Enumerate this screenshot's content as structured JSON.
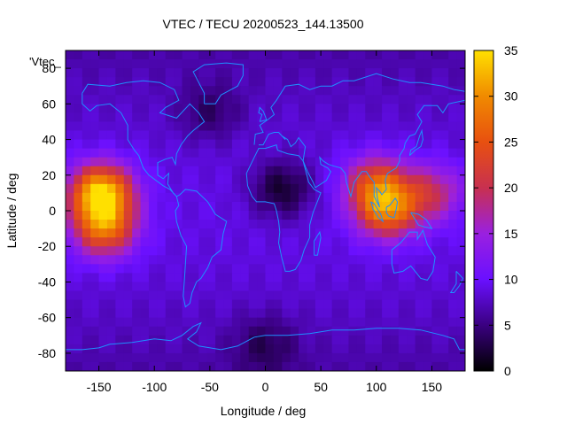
{
  "title": "VTEC / TECU 20200523_144.13500",
  "plot_key_label": "'Vtec_",
  "axes": {
    "xlabel": "Longitude / deg",
    "ylabel": "Latitude / deg",
    "xticks": [
      -150,
      -100,
      -50,
      0,
      50,
      100,
      150
    ],
    "yticks": [
      80,
      60,
      40,
      20,
      0,
      -20,
      -40,
      -60,
      -80
    ],
    "xlim": [
      -180,
      180
    ],
    "ylim": [
      -90,
      90
    ]
  },
  "colorbar": {
    "ticks": [
      0,
      5,
      10,
      15,
      20,
      25,
      30,
      35
    ],
    "range": [
      0,
      35
    ],
    "stops": [
      "#000000",
      "#3a0080",
      "#6a10ff",
      "#9a20e0",
      "#c83050",
      "#e85010",
      "#f08a00",
      "#ffe000"
    ]
  },
  "coastline_color": "#1e90ff",
  "chart_data": {
    "type": "heatmap",
    "title": "VTEC / TECU 20200523_144.13500",
    "xlabel": "Longitude / deg",
    "ylabel": "Latitude / deg",
    "xlim": [
      -180,
      180
    ],
    "ylim": [
      -90,
      90
    ],
    "zlim": [
      0,
      35
    ],
    "background_tec": 8,
    "features": [
      {
        "lon": -148,
        "lat": 10,
        "value": 33
      },
      {
        "lon": -145,
        "lat": -10,
        "value": 25
      },
      {
        "lon": 100,
        "lat": 15,
        "value": 22
      },
      {
        "lon": 110,
        "lat": 0,
        "value": 25
      },
      {
        "lon": 150,
        "lat": 10,
        "value": 18
      },
      {
        "lon": 15,
        "lat": 12,
        "value": 1
      },
      {
        "lon": -50,
        "lat": 55,
        "value": 4
      },
      {
        "lon": 0,
        "lat": -75,
        "value": 4
      }
    ]
  }
}
